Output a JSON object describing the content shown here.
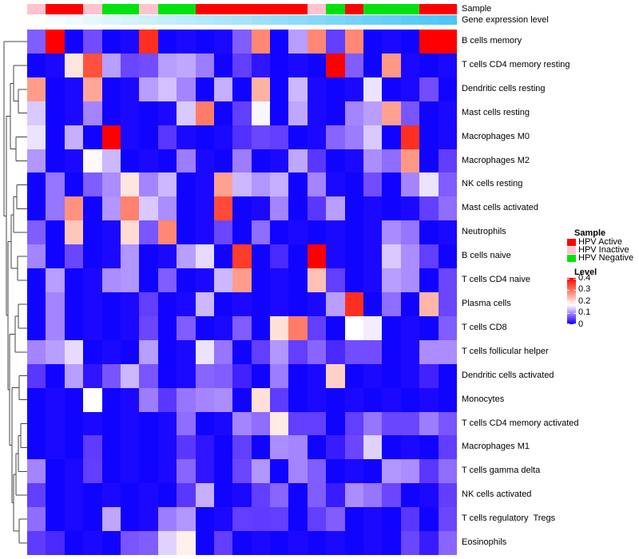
{
  "annotation_tracks": {
    "sample_label": "Sample",
    "gene_label": "Gene expression level"
  },
  "legend": {
    "sample_title": "Sample",
    "sample_items": [
      {
        "label": "HPV Active",
        "color": "#FF0000"
      },
      {
        "label": "HPV Inactive",
        "color": "#FFC3CE"
      },
      {
        "label": "HPV Negative",
        "color": "#00E20D"
      }
    ],
    "level_title": "Level",
    "level_ticks": [
      {
        "label": "0.4",
        "value": 0.4
      },
      {
        "label": "0.3",
        "value": 0.3
      },
      {
        "label": "0.2",
        "value": 0.2
      },
      {
        "label": "0.1",
        "value": 0.1
      },
      {
        "label": "0",
        "value": 0.0
      }
    ]
  },
  "chart_data": {
    "type": "heatmap",
    "rows": [
      "B cells memory",
      "T cells CD4 memory resting",
      "Dendritic cells resting",
      "Mast cells resting",
      "Macrophages M0",
      "Macrophages M2",
      "NK cells resting",
      "Mast cells activated",
      "Neutrophils",
      "B cells naive",
      "T cells CD4 naive",
      "Plasma cells",
      "T cells CD8",
      "T cells follicular helper",
      "Dendritic cells activated",
      "Monocytes",
      "T cells CD4 memory activated",
      "Macrophages M1",
      "T cells gamma delta",
      "NK cells activated",
      "T cells regulatory  Tregs",
      "Eosinophils"
    ],
    "n_columns": 23,
    "column_sample_class": [
      "HPV Inactive",
      "HPV Active",
      "HPV Active",
      "HPV Inactive",
      "HPV Negative",
      "HPV Negative",
      "HPV Inactive",
      "HPV Negative",
      "HPV Negative",
      "HPV Active",
      "HPV Active",
      "HPV Active",
      "HPV Active",
      "HPV Active",
      "HPV Active",
      "HPV Inactive",
      "HPV Negative",
      "HPV Active",
      "HPV Negative",
      "HPV Negative",
      "HPV Negative",
      "HPV Active",
      "HPV Active"
    ],
    "sample_class_colors": {
      "HPV Active": "#FF0000",
      "HPV Inactive": "#FFC3CE",
      "HPV Negative": "#00E20D"
    },
    "gene_expression_gradient": {
      "low": "#FFFFFF",
      "high": "#4AC6F8",
      "note": "columns sorted low-to-high left-to-right"
    },
    "level_range": [
      0,
      0.4
    ],
    "colormap": {
      "low": "#0000FF",
      "mid": "#FFFFFF",
      "high": "#FF0000",
      "white_point": 0.165
    },
    "values": [
      [
        0.07,
        0.4,
        0.005,
        0.06,
        0.005,
        0.01,
        0.36,
        0.005,
        0.01,
        0.005,
        0.01,
        0.07,
        0.28,
        0.005,
        0.11,
        0.28,
        0.05,
        0.28,
        0.005,
        0.01,
        0.005,
        0.4,
        0.4
      ],
      [
        0.005,
        0.01,
        0.19,
        0.33,
        0.11,
        0.055,
        0.06,
        0.11,
        0.115,
        0.09,
        0.005,
        0.05,
        0.02,
        0.005,
        0.01,
        0.005,
        0.4,
        0.07,
        0.005,
        0.265,
        0.01,
        0.005,
        0.01
      ],
      [
        0.26,
        0.005,
        0.01,
        0.25,
        0.005,
        0.01,
        0.11,
        0.13,
        0.095,
        0.005,
        0.12,
        0.005,
        0.24,
        0.005,
        0.125,
        0.01,
        0.005,
        0.01,
        0.15,
        0.005,
        0.01,
        0.06,
        0.005
      ],
      [
        0.135,
        0.005,
        0.01,
        0.095,
        0.005,
        0.01,
        0.005,
        0.01,
        0.135,
        0.29,
        0.005,
        0.05,
        0.16,
        0.005,
        0.115,
        0.01,
        0.005,
        0.095,
        0.11,
        0.255,
        0.065,
        0.005,
        0.01
      ],
      [
        0.15,
        0.005,
        0.12,
        0.005,
        0.4,
        0.01,
        0.005,
        0.045,
        0.01,
        0.005,
        0.01,
        0.04,
        0.055,
        0.05,
        0.005,
        0.01,
        0.075,
        0.09,
        0.135,
        0.005,
        0.36,
        0.005,
        0.01
      ],
      [
        0.105,
        0.005,
        0.01,
        0.17,
        0.125,
        0.005,
        0.01,
        0.005,
        0.09,
        0.01,
        0.005,
        0.09,
        0.005,
        0.01,
        0.115,
        0.045,
        0.005,
        0.01,
        0.1,
        0.08,
        0.265,
        0.005,
        0.05
      ],
      [
        0.005,
        0.085,
        0.005,
        0.07,
        0.1,
        0.19,
        0.095,
        0.125,
        0.005,
        0.01,
        0.255,
        0.125,
        0.105,
        0.12,
        0.005,
        0.095,
        0.01,
        0.005,
        0.06,
        0.005,
        0.095,
        0.15,
        0.07
      ],
      [
        0.005,
        0.085,
        0.27,
        0.005,
        0.105,
        0.285,
        0.135,
        0.1,
        0.005,
        0.01,
        0.335,
        0.005,
        0.01,
        0.095,
        0.005,
        0.045,
        0.11,
        0.005,
        0.01,
        0.005,
        0.01,
        0.05,
        0.08
      ],
      [
        0.07,
        0.005,
        0.22,
        0.005,
        0.01,
        0.2,
        0.065,
        0.28,
        0.005,
        0.01,
        0.055,
        0.005,
        0.08,
        0.005,
        0.01,
        0.005,
        0.01,
        0.005,
        0.01,
        0.1,
        0.085,
        0.005,
        0.01
      ],
      [
        0.095,
        0.005,
        0.055,
        0.005,
        0.01,
        0.105,
        0.005,
        0.01,
        0.11,
        0.145,
        0.005,
        0.35,
        0.005,
        0.035,
        0.005,
        0.4,
        0.01,
        0.005,
        0.01,
        0.135,
        0.1,
        0.05,
        0.005
      ],
      [
        0.005,
        0.11,
        0.005,
        0.01,
        0.1,
        0.105,
        0.005,
        0.07,
        0.005,
        0.01,
        0.125,
        0.26,
        0.005,
        0.01,
        0.005,
        0.225,
        0.05,
        0.005,
        0.01,
        0.11,
        0.1,
        0.005,
        0.055
      ],
      [
        0.005,
        0.095,
        0.005,
        0.01,
        0.005,
        0.01,
        0.05,
        0.005,
        0.01,
        0.125,
        0.005,
        0.01,
        0.005,
        0.01,
        0.005,
        0.01,
        0.11,
        0.36,
        0.005,
        0.08,
        0.005,
        0.235,
        0.055
      ],
      [
        0.005,
        0.095,
        0.005,
        0.01,
        0.005,
        0.01,
        0.055,
        0.005,
        0.07,
        0.005,
        0.01,
        0.07,
        0.005,
        0.195,
        0.29,
        0.05,
        0.005,
        0.165,
        0.155,
        0.005,
        0.01,
        0.005,
        0.07
      ],
      [
        0.095,
        0.11,
        0.145,
        0.005,
        0.01,
        0.005,
        0.11,
        0.005,
        0.01,
        0.15,
        0.085,
        0.005,
        0.05,
        0.105,
        0.05,
        0.075,
        0.035,
        0.06,
        0.06,
        0.005,
        0.01,
        0.1,
        0.1
      ],
      [
        0.045,
        0.005,
        0.11,
        0.02,
        0.065,
        0.125,
        0.065,
        0.005,
        0.01,
        0.075,
        0.07,
        0.03,
        0.005,
        0.09,
        0.005,
        0.01,
        0.21,
        0.005,
        0.01,
        0.005,
        0.01,
        0.03,
        0.005
      ],
      [
        0.005,
        0.01,
        0.005,
        0.165,
        0.005,
        0.01,
        0.09,
        0.045,
        0.085,
        0.095,
        0.1,
        0.005,
        0.195,
        0.048,
        0.005,
        0.01,
        0.005,
        0.01,
        0.005,
        0.01,
        0.005,
        0.01,
        0.005
      ],
      [
        0.005,
        0.01,
        0.005,
        0.01,
        0.005,
        0.01,
        0.005,
        0.01,
        0.08,
        0.005,
        0.01,
        0.095,
        0.08,
        0.185,
        0.05,
        0.05,
        0.005,
        0.05,
        0.085,
        0.055,
        0.055,
        0.09,
        0.065
      ],
      [
        0.005,
        0.01,
        0.005,
        0.048,
        0.005,
        0.01,
        0.005,
        0.01,
        0.045,
        0.02,
        0.005,
        0.05,
        0.005,
        0.1,
        0.095,
        0.005,
        0.025,
        0.055,
        0.14,
        0.005,
        0.01,
        0.005,
        0.05
      ],
      [
        0.095,
        0.005,
        0.01,
        0.05,
        0.005,
        0.01,
        0.005,
        0.01,
        0.075,
        0.02,
        0.005,
        0.055,
        0.105,
        0.005,
        0.095,
        0.07,
        0.005,
        0.01,
        0.005,
        0.105,
        0.1,
        0.045,
        0.08
      ],
      [
        0.05,
        0.005,
        0.01,
        0.005,
        0.01,
        0.005,
        0.01,
        0.005,
        0.045,
        0.12,
        0.005,
        0.01,
        0.05,
        0.075,
        0.005,
        0.07,
        0.025,
        0.1,
        0.085,
        0.055,
        0.005,
        0.01,
        0.05
      ],
      [
        0.08,
        0.005,
        0.01,
        0.005,
        0.115,
        0.005,
        0.01,
        0.09,
        0.105,
        0.005,
        0.01,
        0.05,
        0.048,
        0.05,
        0.005,
        0.05,
        0.07,
        0.005,
        0.01,
        0.005,
        0.045,
        0.005,
        0.055
      ],
      [
        0.048,
        0.035,
        0.005,
        0.01,
        0.005,
        0.065,
        0.07,
        0.14,
        0.18,
        0.005,
        0.05,
        0.005,
        0.01,
        0.005,
        0.01,
        0.005,
        0.01,
        0.005,
        0.01,
        0.005,
        0.055,
        0.025,
        0.075
      ]
    ],
    "dendrogram": {
      "x": 5,
      "c": [
        {
          "l": 1
        },
        {
          "x": 8,
          "c": [
            {
              "x": 13,
              "c": [
                {
                  "x": 17,
                  "c": [
                    {
                      "l": 2
                    },
                    {
                      "x": 23,
                      "c": [
                        {
                          "l": 3
                        },
                        {
                          "l": 4
                        }
                      ]
                    }
                  ]
                },
                {
                  "x": 20,
                  "c": [
                    {
                      "l": 5
                    },
                    {
                      "l": 6
                    }
                  ]
                }
              ]
            },
            {
              "x": 10,
              "c": [
                {
                  "x": 14,
                  "c": [
                    {
                      "x": 17,
                      "c": [
                        {
                          "x": 21,
                          "c": [
                            {
                              "l": 7
                            },
                            {
                              "l": 8
                            }
                          ]
                        },
                        {
                          "l": 9
                        }
                      ]
                    },
                    {
                      "x": 22,
                      "c": [
                        {
                          "l": 10
                        },
                        {
                          "l": 11
                        }
                      ]
                    }
                  ]
                },
                {
                  "x": 12,
                  "c": [
                    {
                      "x": 19,
                      "c": [
                        {
                          "x": 23,
                          "c": [
                            {
                              "l": 12
                            },
                            {
                              "l": 13
                            }
                          ]
                        },
                        {
                          "l": 14
                        }
                      ]
                    },
                    {
                      "x": 15,
                      "c": [
                        {
                          "x": 24,
                          "c": [
                            {
                              "l": 15
                            },
                            {
                              "l": 16
                            }
                          ]
                        },
                        {
                          "x": 17,
                          "c": [
                            {
                              "x": 20,
                              "c": [
                                {
                                  "x": 23,
                                  "c": [
                                    {
                                      "x": 26,
                                      "c": [
                                        {
                                          "l": 17
                                        },
                                        {
                                          "l": 18
                                        }
                                      ]
                                    },
                                    {
                                      "l": 19
                                    }
                                  ]
                                },
                                {
                                  "l": 20
                                }
                              ]
                            },
                            {
                              "x": 24,
                              "c": [
                                {
                                  "l": 21
                                },
                                {
                                  "l": 22
                                }
                              ]
                            }
                          ]
                        }
                      ]
                    }
                  ]
                }
              ]
            }
          ]
        }
      ]
    }
  }
}
